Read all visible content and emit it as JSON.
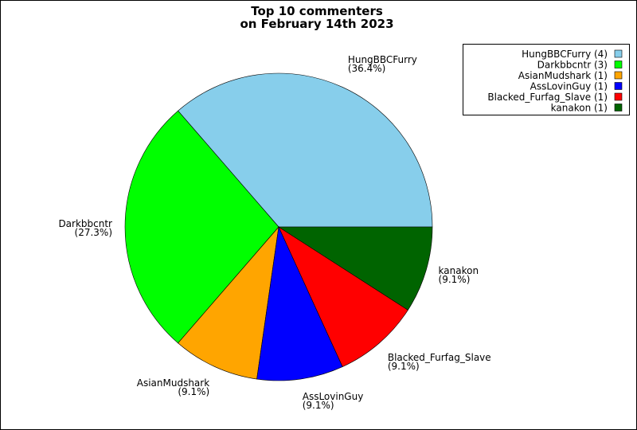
{
  "chart_data": {
    "type": "pie",
    "title": [
      "Top 10 commenters",
      "on February 14th 2023"
    ],
    "categories": [
      "HungBBCFurry",
      "Darkbbcntr",
      "AsianMudshark",
      "AssLovinGuy",
      "Blacked_Furfag_Slave",
      "kanakon"
    ],
    "values": [
      4,
      3,
      1,
      1,
      1,
      1
    ],
    "percent_labels": [
      "(36.4%)",
      "(27.3%)",
      "(9.1%)",
      "(9.1%)",
      "(9.1%)",
      "(9.1%)"
    ],
    "legend_labels": [
      "HungBBCFurry (4)",
      "Darkbbcntr (3)",
      "AsianMudshark (1)",
      "AssLovinGuy (1)",
      "Blacked_Furfag_Slave (1)",
      "kanakon (1)"
    ],
    "colors": [
      "#87ceeb",
      "#00ff00",
      "#ffa500",
      "#0000ff",
      "#ff0000",
      "#006400"
    ],
    "legend": "top-right"
  }
}
